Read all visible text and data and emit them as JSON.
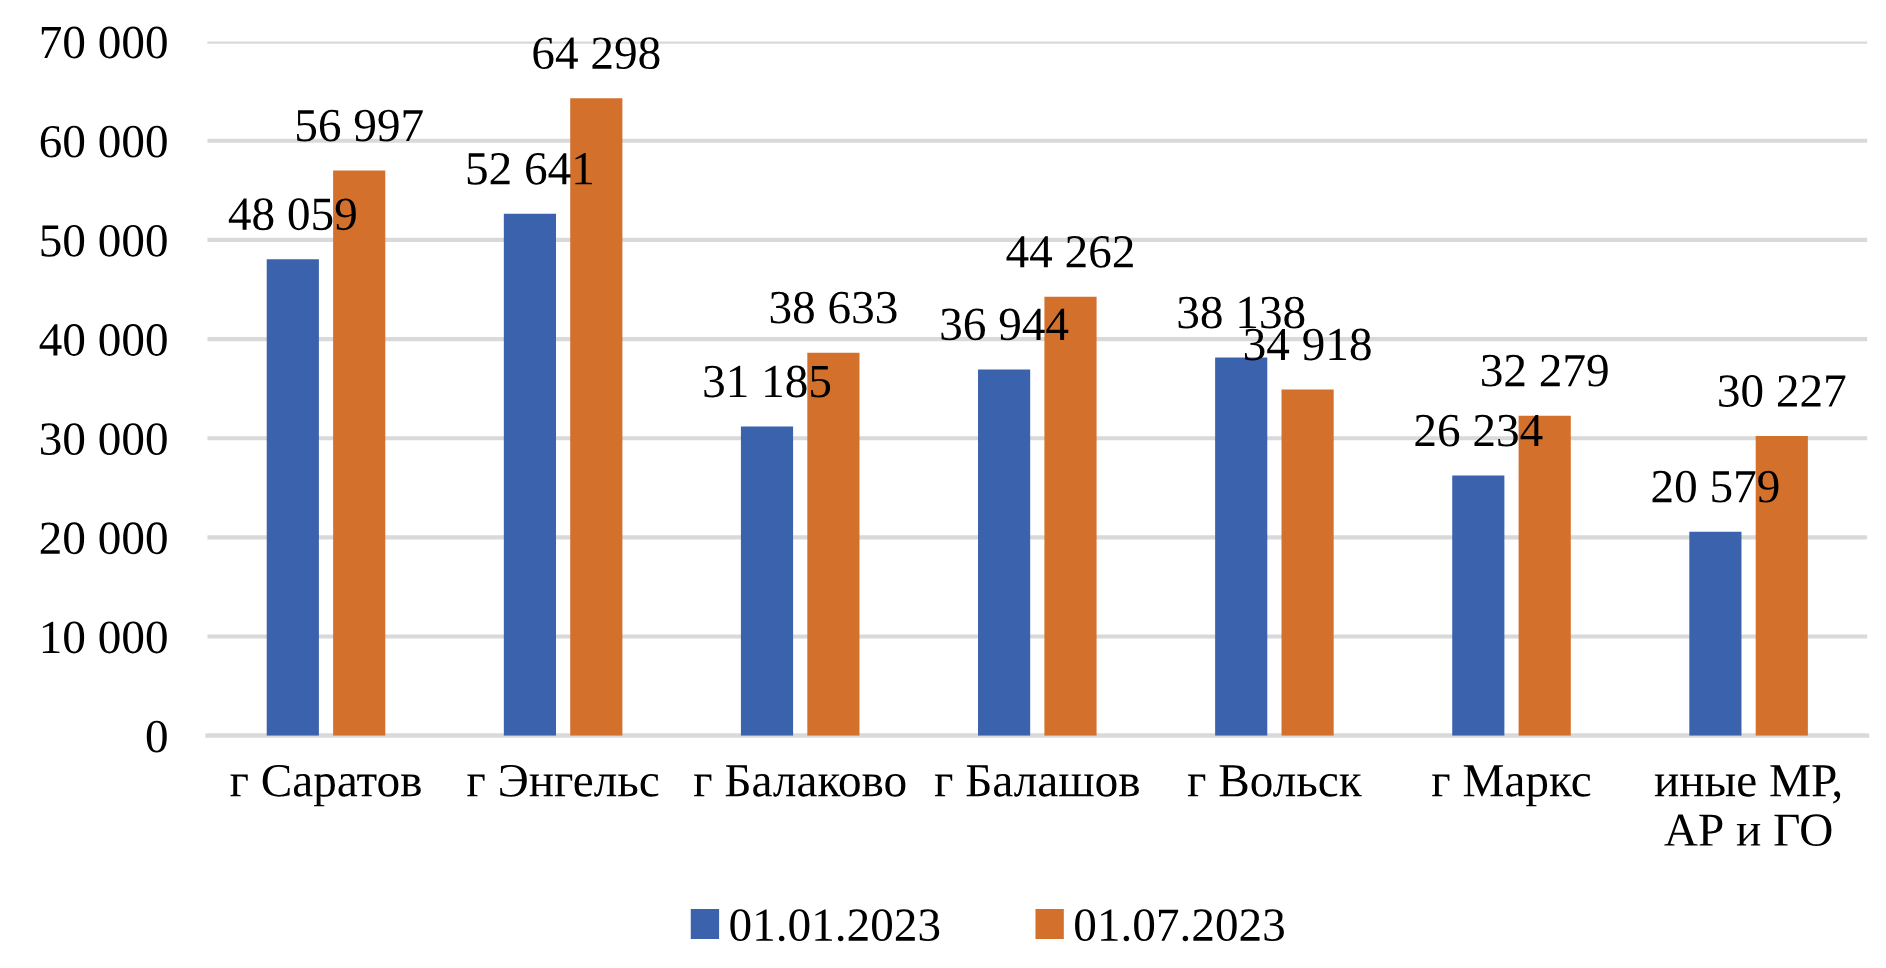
{
  "chart_data": {
    "type": "bar",
    "categories": [
      "г Саратов",
      "г Энгельс",
      "г Балаково",
      "г Балашов",
      "г Вольск",
      "г Маркс",
      "иные МР,\nАР и ГО"
    ],
    "series": [
      {
        "name": "01.01.2023",
        "color": "#3b62ad",
        "values": [
          48059,
          52641,
          31185,
          36944,
          38138,
          26234,
          20579
        ]
      },
      {
        "name": "01.07.2023",
        "color": "#d2702c",
        "values": [
          56997,
          64298,
          38633,
          44262,
          34918,
          32279,
          30227
        ]
      }
    ],
    "ylim": [
      0,
      70000
    ],
    "yticks": [
      {
        "value": 0,
        "label": "0"
      },
      {
        "value": 10000,
        "label": "10 000"
      },
      {
        "value": 20000,
        "label": "20 000"
      },
      {
        "value": 30000,
        "label": "30 000"
      },
      {
        "value": 40000,
        "label": "40 000"
      },
      {
        "value": 50000,
        "label": "50 000"
      },
      {
        "value": 60000,
        "label": "60 000"
      },
      {
        "value": 70000,
        "label": "70 000"
      }
    ],
    "grid": "y",
    "legend": "bottom",
    "data_labels": true
  }
}
